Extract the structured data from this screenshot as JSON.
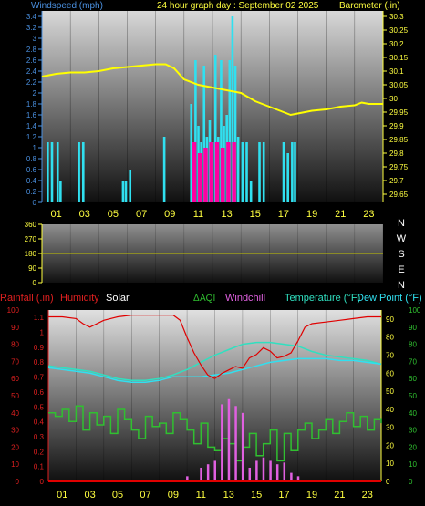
{
  "top_panel": {
    "left_title": "Windspeed (mph)",
    "center_title": "24 hour graph day : September 02 2025",
    "right_title": "Barometer (.in)",
    "left_ticks": [
      "3.4",
      "3.2",
      "3",
      "2.8",
      "2.6",
      "2.4",
      "2.2",
      "2",
      "1.8",
      "1.6",
      "1.4",
      "1.2",
      "1",
      "0.8",
      "0.6",
      "0.4",
      "0.2",
      "0"
    ],
    "right_ticks": [
      "30.3",
      "30.25",
      "30.2",
      "30.15",
      "30.1",
      "30.05",
      "30",
      "29.95",
      "29.9",
      "29.85",
      "29.8",
      "29.75",
      "29.7",
      "29.65"
    ]
  },
  "middle_panel": {
    "left_ticks": [
      "360",
      "270",
      "180",
      "90",
      "0"
    ],
    "compass": [
      "N",
      "W",
      "S",
      "E",
      "N"
    ]
  },
  "bottom_panel": {
    "legend": {
      "rainfall": "Rainfall (.in)",
      "humidity": "Humidity",
      "solar": "Solar",
      "aqi": "AQI",
      "windchill": "Windchill",
      "temperature": "Temperature (°F)",
      "dewpoint": "Dew Point (°F)"
    },
    "left_ticks_a": [
      "100",
      "90",
      "80",
      "70",
      "60",
      "50",
      "40",
      "30",
      "20",
      "10",
      "0"
    ],
    "left_ticks_b": [
      "1.1",
      "1",
      "0.9",
      "0.8",
      "0.7",
      "0.6",
      "0.5",
      "0.4",
      "0.3",
      "0.2",
      "0.1",
      "0"
    ],
    "right_ticks_a": [
      "90",
      "80",
      "70",
      "60",
      "50",
      "40",
      "30",
      "20",
      "10",
      "0"
    ],
    "right_ticks_b": [
      "100",
      "90",
      "80",
      "70",
      "60",
      "50",
      "40",
      "30",
      "20",
      "10",
      "0"
    ]
  },
  "x_ticks": [
    "01",
    "03",
    "05",
    "07",
    "09",
    "11",
    "13",
    "15",
    "17",
    "19",
    "21",
    "23"
  ],
  "colors": {
    "windspeed": "#30e0f0",
    "gust": "#ff00a0",
    "barometer": "#ffff00",
    "humidity": "#e00000",
    "temperature": "#30e0c0",
    "dewpoint": "#30e0f0",
    "solar": "#30c030",
    "windchill": "#e060e0",
    "aqi": "#30c030",
    "axis_left_top": "#4a90e0",
    "axis_left_bottom": "#e02020",
    "axis_right": "#ffff40",
    "axis_right_bottom": "#30c030"
  },
  "chart_data": [
    {
      "type": "line",
      "title": "24 hour graph day : September 02 2025",
      "xlabel": "",
      "ylabel": "Windspeed (mph)",
      "y2label": "Barometer (.in)",
      "x_range": [
        0,
        24
      ],
      "ylim": [
        0,
        3.5
      ],
      "y2lim": [
        29.62,
        30.32
      ],
      "series": [
        {
          "name": "Barometer (.in)",
          "axis": "right",
          "x": [
            0,
            1,
            2,
            3,
            4,
            5,
            6,
            7,
            8,
            8.7,
            9.3,
            10,
            11,
            12,
            13,
            14,
            15,
            16,
            17,
            17.5,
            18,
            19,
            20,
            21,
            22,
            22.5,
            23,
            24
          ],
          "values": [
            30.08,
            30.09,
            30.095,
            30.095,
            30.1,
            30.11,
            30.115,
            30.12,
            30.125,
            30.125,
            30.11,
            30.07,
            30.05,
            30.04,
            30.03,
            30.02,
            29.99,
            29.97,
            29.95,
            29.94,
            29.945,
            29.955,
            29.96,
            29.97,
            29.975,
            29.985,
            29.98,
            29.98
          ]
        },
        {
          "name": "Windspeed (mph)",
          "axis": "left",
          "type": "bar",
          "x": [
            0.4,
            0.7,
            1.1,
            1.3,
            2.6,
            2.9,
            5.7,
            5.9,
            6.2,
            8.6,
            10.5,
            10.8,
            11.0,
            11.2,
            11.4,
            11.6,
            11.8,
            12.0,
            12.2,
            12.4,
            12.6,
            12.8,
            13.0,
            13.2,
            13.4,
            13.6,
            13.8,
            14.1,
            14.4,
            14.7,
            15.3,
            15.6,
            17.0,
            17.3,
            17.6,
            17.8
          ],
          "values": [
            1.1,
            1.1,
            1.1,
            0.4,
            1.1,
            1.1,
            0.4,
            0.4,
            0.6,
            1.2,
            1.8,
            2.6,
            1.4,
            1.1,
            2.5,
            1.2,
            1.5,
            1.1,
            2.7,
            1.2,
            2.6,
            1.4,
            1.6,
            2.6,
            3.4,
            2.5,
            1.2,
            1.1,
            1.1,
            0.4,
            1.1,
            1.1,
            1.1,
            0.9,
            1.1,
            1.1
          ]
        },
        {
          "name": "Gust",
          "axis": "left",
          "type": "bar",
          "x": [
            10.7,
            11.1,
            11.5,
            11.9,
            12.3,
            12.7,
            13.1,
            13.5
          ],
          "values": [
            1.1,
            0.9,
            1.0,
            1.1,
            1.1,
            1.0,
            1.1,
            1.1
          ]
        }
      ]
    },
    {
      "type": "line",
      "title": "",
      "ylabel": "",
      "x_range": [
        0,
        24
      ],
      "ylim": [
        0,
        360
      ],
      "series": [
        {
          "name": "Wind direction",
          "x": [
            0,
            24
          ],
          "values": [
            180,
            180
          ]
        }
      ]
    },
    {
      "type": "line",
      "title": "",
      "ylabel": "Rainfall (.in) / Humidity",
      "y2label": "Temperature (°F) / Dew Point (°F)",
      "x_range": [
        0,
        24
      ],
      "ylim": [
        0,
        100
      ],
      "y2lim": [
        0,
        95
      ],
      "series": [
        {
          "name": "Humidity",
          "x": [
            0,
            1,
            2,
            2.5,
            3,
            4,
            5,
            6,
            7,
            8,
            9,
            9.5,
            10,
            10.5,
            11,
            11.5,
            12,
            12.5,
            13,
            13.5,
            14,
            14.5,
            15,
            15.5,
            16,
            16.5,
            17,
            17.5,
            18,
            18.5,
            19,
            20,
            21,
            22,
            23,
            24
          ],
          "values": [
            96,
            96,
            95,
            92,
            90,
            94,
            96,
            97,
            97,
            97,
            97,
            94,
            84,
            75,
            68,
            62,
            60,
            63,
            65,
            67,
            66,
            72,
            74,
            78,
            76,
            72,
            73,
            75,
            82,
            90,
            92,
            93,
            94,
            95,
            96,
            96
          ]
        },
        {
          "name": "Temperature (°F)",
          "x": [
            0,
            1,
            2,
            3,
            4,
            5,
            6,
            7,
            8,
            9,
            10,
            11,
            12,
            13,
            14,
            15,
            16,
            17,
            18,
            19,
            20,
            21,
            22,
            23,
            24
          ],
          "values": [
            64,
            63,
            62,
            61,
            59,
            57,
            56,
            56,
            57,
            59,
            62,
            66,
            70,
            73,
            76,
            77,
            77,
            76,
            75,
            72,
            70,
            69,
            68,
            67,
            65
          ]
        },
        {
          "name": "Dew Point (°F)",
          "x": [
            0,
            1,
            2,
            3,
            4,
            5,
            6,
            7,
            8,
            9,
            10,
            11,
            12,
            13,
            14,
            15,
            16,
            17,
            18,
            19,
            20,
            21,
            22,
            23,
            24
          ],
          "values": [
            63,
            62,
            61,
            60,
            58,
            56,
            55,
            55,
            56,
            58,
            58,
            58,
            59,
            60,
            62,
            64,
            66,
            67,
            68,
            68,
            68,
            67,
            67,
            66,
            65
          ]
        },
        {
          "name": "Solar",
          "x": [
            0,
            0.5,
            1,
            1.5,
            2,
            2.5,
            3,
            3.5,
            4,
            4.5,
            5,
            5.5,
            6,
            6.5,
            7,
            7.5,
            8,
            8.5,
            9,
            9.5,
            10,
            10.5,
            11,
            11.5,
            12,
            12.5,
            13,
            13.5,
            14,
            14.5,
            15,
            15.5,
            16,
            16.5,
            17,
            17.5,
            18,
            18.5,
            19,
            19.5,
            20,
            20.5,
            21,
            21.5,
            22,
            22.5,
            23,
            23.5,
            24
          ],
          "values": [
            40,
            38,
            42,
            35,
            44,
            30,
            40,
            33,
            38,
            28,
            42,
            36,
            30,
            25,
            38,
            32,
            34,
            28,
            40,
            36,
            30,
            22,
            34,
            20,
            18,
            25,
            22,
            12,
            20,
            28,
            15,
            22,
            30,
            12,
            28,
            18,
            30,
            34,
            25,
            30,
            36,
            28,
            35,
            40,
            32,
            38,
            30,
            36,
            34
          ]
        },
        {
          "name": "Windchill",
          "x": [
            9,
            10,
            11,
            11.5,
            12,
            12.5,
            13,
            13.5,
            14,
            14.5,
            15,
            15.5,
            16,
            16.5,
            17,
            17.5,
            18,
            19,
            20
          ],
          "values": [
            0,
            3,
            8,
            10,
            12,
            45,
            48,
            44,
            40,
            8,
            12,
            14,
            12,
            10,
            11,
            5,
            3,
            1,
            0
          ]
        },
        {
          "name": "Rainfall (.in)",
          "x": [
            0,
            24
          ],
          "values": [
            0,
            0
          ]
        }
      ]
    }
  ]
}
